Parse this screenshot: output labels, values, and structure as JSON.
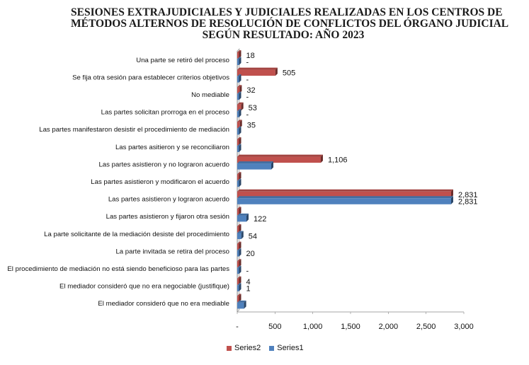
{
  "chart_data": {
    "type": "bar",
    "orientation": "horizontal",
    "title_lines": [
      "SESIONES EXTRAJUDICIALES Y JUDICIALES REALIZADAS EN LOS CENTROS DE",
      "MÉTODOS ALTERNOS DE RESOLUCIÓN DE CONFLICTOS DEL ÓRGANO JUDICIAL",
      "SEGÚN RESULTADO:   AÑO 2023"
    ],
    "categories": [
      "Una parte se retiró del proceso",
      "Se fija otra sesión para establecer criterios objetivos",
      "No mediable",
      "Las partes solicitan prorroga en el proceso",
      "Las partes manifestaron desistir el procedimiento de mediación",
      "Las partes asitieron y se reconciliaron",
      "Las partes asistieron y no lograron acuerdo",
      "Las partes asistieron y modificaron el acuerdo",
      "Las partes asistieron y lograron acuerdo",
      "Las partes asistieron y fijaron otra sesión",
      "La parte solicitante de la mediación desiste del procedimiento",
      "La parte invitada se retira del proceso",
      "El procedimiento de mediación no está siendo beneficioso para las partes",
      "El mediador consideró que no era negociable (justifique)",
      "El mediador consideró que no era mediable"
    ],
    "series": [
      {
        "name": "Series2",
        "color": "#c0504d",
        "values": [
          18,
          505,
          32,
          53,
          35,
          0,
          1106,
          0,
          2831,
          0,
          0,
          0,
          0,
          4,
          0
        ],
        "labels": [
          "18",
          "505",
          "32",
          "53",
          "35",
          "",
          "1,106",
          "",
          "2,831",
          "",
          "",
          "",
          "",
          "4",
          ""
        ]
      },
      {
        "name": "Series1",
        "color": "#4f81bd",
        "values": [
          0,
          0,
          0,
          0,
          0,
          0,
          450,
          0,
          2831,
          122,
          54,
          20,
          0,
          1,
          90
        ],
        "labels": [
          "-",
          "-",
          "-",
          "-",
          "",
          "",
          "",
          "",
          "2,831",
          "122",
          "54",
          "20",
          "-",
          "1",
          ""
        ]
      }
    ],
    "x_ticks": [
      "-",
      "500",
      "1,000",
      "1,500",
      "2,000",
      "2,500",
      "3,000"
    ],
    "xlim": [
      0,
      3000
    ],
    "grid": false,
    "legend_position": "bottom"
  }
}
